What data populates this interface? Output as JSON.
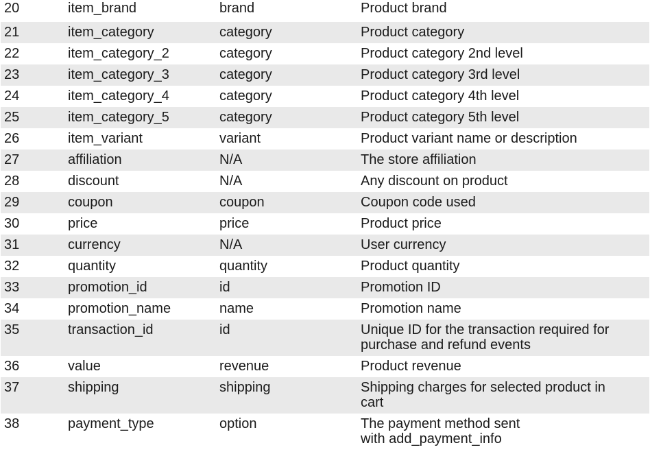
{
  "rows": [
    {
      "num": "20",
      "parameter": "item_brand",
      "mapped": "brand",
      "description": "Product brand"
    },
    {
      "num": "21",
      "parameter": "item_category",
      "mapped": "category",
      "description": "Product category"
    },
    {
      "num": "22",
      "parameter": "item_category_2",
      "mapped": "category",
      "description": "Product category 2nd level"
    },
    {
      "num": "23",
      "parameter": "item_category_3",
      "mapped": "category",
      "description": "Product category 3rd level"
    },
    {
      "num": "24",
      "parameter": "item_category_4",
      "mapped": "category",
      "description": "Product category 4th level"
    },
    {
      "num": "25",
      "parameter": "item_category_5",
      "mapped": "category",
      "description": "Product category 5th level"
    },
    {
      "num": "26",
      "parameter": "item_variant",
      "mapped": "variant",
      "description": "Product variant name or description"
    },
    {
      "num": "27",
      "parameter": "affiliation",
      "mapped": "N/A",
      "description": "The store affiliation"
    },
    {
      "num": "28",
      "parameter": "discount",
      "mapped": "N/A",
      "description": "Any discount on product"
    },
    {
      "num": "29",
      "parameter": "coupon",
      "mapped": "coupon",
      "description": "Coupon code used"
    },
    {
      "num": "30",
      "parameter": "price",
      "mapped": "price",
      "description": "Product price"
    },
    {
      "num": "31",
      "parameter": "currency",
      "mapped": "N/A",
      "description": "User currency"
    },
    {
      "num": "32",
      "parameter": "quantity",
      "mapped": "quantity",
      "description": "Product quantity"
    },
    {
      "num": "33",
      "parameter": "promotion_id",
      "mapped": "id",
      "description": "Promotion ID"
    },
    {
      "num": "34",
      "parameter": "promotion_name",
      "mapped": "name",
      "description": "Promotion name"
    },
    {
      "num": "35",
      "parameter": "transaction_id",
      "mapped": "id",
      "description": "Unique ID for the transaction required for\npurchase and refund events"
    },
    {
      "num": "36",
      "parameter": "value",
      "mapped": "revenue",
      "description": "Product revenue"
    },
    {
      "num": "37",
      "parameter": "shipping",
      "mapped": "shipping",
      "description": "Shipping charges for selected product in\ncart"
    },
    {
      "num": "38",
      "parameter": "payment_type",
      "mapped": "option",
      "description": "The payment method sent\nwith add_payment_info"
    }
  ]
}
